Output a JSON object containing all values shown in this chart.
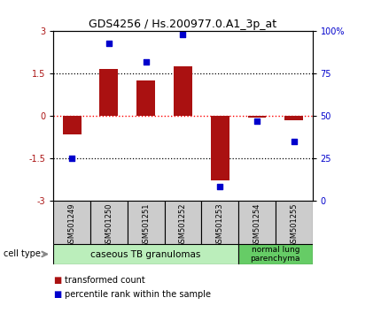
{
  "title": "GDS4256 / Hs.200977.0.A1_3p_at",
  "samples": [
    "GSM501249",
    "GSM501250",
    "GSM501251",
    "GSM501252",
    "GSM501253",
    "GSM501254",
    "GSM501255"
  ],
  "transformed_counts": [
    -0.65,
    1.65,
    1.25,
    1.75,
    -2.3,
    -0.05,
    -0.15
  ],
  "percentile_ranks": [
    25,
    93,
    82,
    98,
    8,
    47,
    35
  ],
  "ylim_left": [
    -3,
    3
  ],
  "ylim_right": [
    0,
    100
  ],
  "left_ticks": [
    -3,
    -1.5,
    0,
    1.5,
    3
  ],
  "right_ticks": [
    0,
    25,
    50,
    75,
    100
  ],
  "right_tick_labels": [
    "0",
    "25",
    "50",
    "75",
    "100%"
  ],
  "hlines_dotted": [
    -1.5,
    1.5
  ],
  "hline_red_dotted": 0,
  "bar_color": "#aa1111",
  "dot_color": "#0000cc",
  "bar_width": 0.5,
  "group1_label": "caseous TB granulomas",
  "group1_color": "#bbeebb",
  "group1_count": 5,
  "group2_label": "normal lung\nparenchyma",
  "group2_color": "#66cc66",
  "group2_count": 2,
  "legend_bar_label": "transformed count",
  "legend_dot_label": "percentile rank within the sample",
  "cell_type_label": "cell type",
  "label_box_color": "#cccccc",
  "title_fontsize": 9,
  "tick_fontsize": 7,
  "label_fontsize": 6,
  "legend_fontsize": 7
}
